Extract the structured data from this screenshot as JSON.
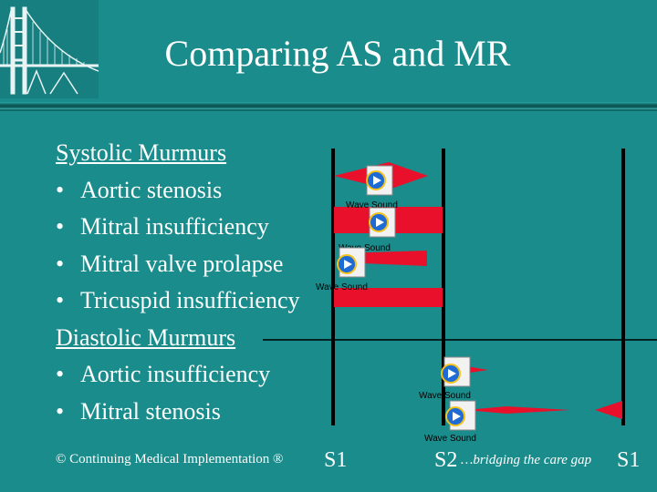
{
  "title": "Comparing AS and MR",
  "systolic_heading": "Systolic Murmurs",
  "systolic_items": [
    "Aortic stenosis",
    "Mitral insufficiency",
    "Mitral valve prolapse",
    "Tricuspid insufficiency"
  ],
  "diastolic_heading": "Diastolic Murmurs",
  "diastolic_items": [
    "Aortic insufficiency",
    "Mitral stenosis"
  ],
  "bullet_glyph": "•",
  "footer": "© Continuing Medical Implementation ®",
  "tagline": "…bridging the care gap",
  "heart_sounds": {
    "s1_left": "S1",
    "s2": "S2",
    "s1_right": "S1"
  },
  "sound_icon_label": "Wave Sound",
  "colors": {
    "background": "#1a8c8c",
    "murmur_red": "#e8102a",
    "text": "#ffffff",
    "line": "#000000"
  }
}
